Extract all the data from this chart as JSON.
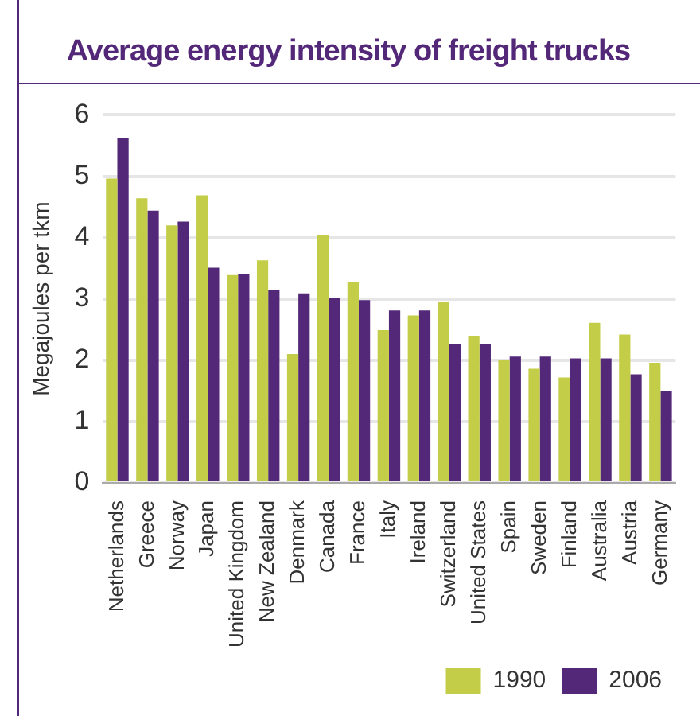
{
  "chart_data": {
    "type": "bar",
    "title": "Average energy intensity of freight trucks",
    "ylabel": "Megajoules per tkm",
    "categories": [
      "Netherlands",
      "Greece",
      "Norway",
      "Japan",
      "United Kingdom",
      "New Zealand",
      "Denmark",
      "Canada",
      "France",
      "Italy",
      "Ireland",
      "Switzerland",
      "United States",
      "Spain",
      "Sweden",
      "Finland",
      "Australia",
      "Austria",
      "Germany"
    ],
    "series": [
      {
        "name": "1990",
        "color": "#c3cd47",
        "values": [
          4.96,
          4.64,
          4.2,
          4.69,
          3.39,
          3.63,
          2.1,
          4.04,
          3.27,
          2.49,
          2.73,
          2.95,
          2.4,
          2.01,
          1.86,
          1.72,
          2.61,
          2.42,
          1.96
        ]
      },
      {
        "name": "2006",
        "color": "#532878",
        "values": [
          5.63,
          4.44,
          4.26,
          3.51,
          3.41,
          3.15,
          3.09,
          3.02,
          2.98,
          2.81,
          2.81,
          2.27,
          2.27,
          2.06,
          2.06,
          2.03,
          2.03,
          1.77,
          1.5
        ]
      }
    ],
    "ylim": [
      0,
      6
    ],
    "yticks": [
      0,
      1,
      2,
      3,
      4,
      5,
      6
    ],
    "grid": "y",
    "legend": "bottom right"
  }
}
